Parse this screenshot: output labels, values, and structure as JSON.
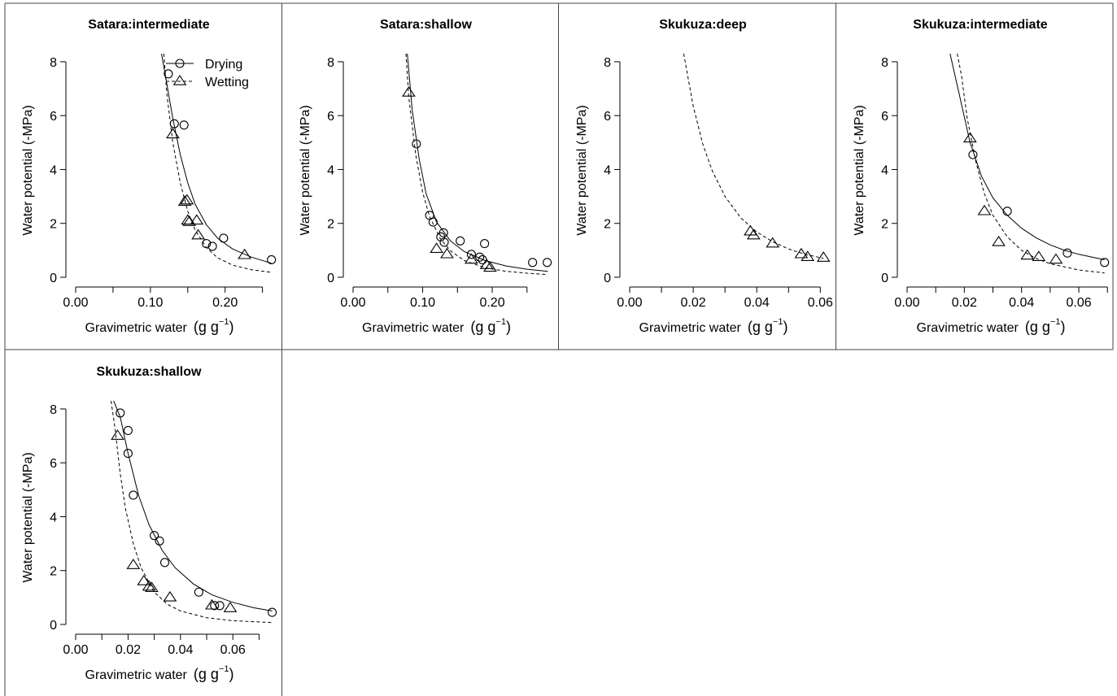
{
  "chart_data": [
    {
      "type": "scatter",
      "title": "Satara:intermediate",
      "xlabel": "Gravimetric water",
      "xunit_base": "(g g",
      "xunit_exp": "−1",
      "xunit_close": ")",
      "ylabel": "Water potential (-MPa)",
      "xlim": [
        0,
        0.27
      ],
      "ylim": [
        0,
        8.3
      ],
      "xticks": [
        0,
        0.05,
        0.1,
        0.15,
        0.2,
        0.25
      ],
      "xticklabels": [
        "0.00",
        "",
        "0.10",
        "",
        "0.20",
        ""
      ],
      "yticks": [
        0,
        2,
        4,
        6,
        8
      ],
      "yticklabels": [
        "0",
        "2",
        "4",
        "6",
        "8"
      ],
      "legend": {
        "position": "top-right",
        "entries": [
          "Drying",
          "Wetting"
        ]
      },
      "series": [
        {
          "name": "Drying",
          "marker": "circle",
          "line": "solid",
          "points": [
            [
              0.124,
              7.55
            ],
            [
              0.132,
              5.7
            ],
            [
              0.145,
              5.65
            ],
            [
              0.175,
              1.25
            ],
            [
              0.183,
              1.15
            ],
            [
              0.198,
              1.45
            ],
            [
              0.262,
              0.65
            ]
          ],
          "curve": [
            [
              0.115,
              8.3
            ],
            [
              0.12,
              7.5
            ],
            [
              0.13,
              5.9
            ],
            [
              0.14,
              4.55
            ],
            [
              0.15,
              3.5
            ],
            [
              0.16,
              2.7
            ],
            [
              0.175,
              1.95
            ],
            [
              0.19,
              1.45
            ],
            [
              0.21,
              1.05
            ],
            [
              0.235,
              0.75
            ],
            [
              0.262,
              0.52
            ]
          ]
        },
        {
          "name": "Wetting",
          "marker": "triangle",
          "line": "dashed",
          "points": [
            [
              0.13,
              5.3
            ],
            [
              0.146,
              2.8
            ],
            [
              0.149,
              2.85
            ],
            [
              0.15,
              2.1
            ],
            [
              0.152,
              2.05
            ],
            [
              0.162,
              2.1
            ],
            [
              0.164,
              1.55
            ],
            [
              0.226,
              0.82
            ]
          ],
          "curve": [
            [
              0.118,
              8.3
            ],
            [
              0.122,
              6.8
            ],
            [
              0.13,
              5.0
            ],
            [
              0.14,
              3.5
            ],
            [
              0.15,
              2.45
            ],
            [
              0.16,
              1.75
            ],
            [
              0.175,
              1.1
            ],
            [
              0.19,
              0.72
            ],
            [
              0.21,
              0.45
            ],
            [
              0.235,
              0.28
            ],
            [
              0.262,
              0.18
            ]
          ]
        }
      ]
    },
    {
      "type": "scatter",
      "title": "Satara:shallow",
      "xlabel": "Gravimetric water",
      "xunit_base": "(g g",
      "xunit_exp": "−1",
      "xunit_close": ")",
      "ylabel": "Water potential (-MPa)",
      "xlim": [
        0,
        0.29
      ],
      "ylim": [
        0,
        8.3
      ],
      "xticks": [
        0,
        0.05,
        0.1,
        0.15,
        0.2,
        0.25
      ],
      "xticklabels": [
        "0.00",
        "",
        "0.10",
        "",
        "0.20",
        ""
      ],
      "yticks": [
        0,
        2,
        4,
        6,
        8
      ],
      "yticklabels": [
        "0",
        "2",
        "4",
        "6",
        "8"
      ],
      "series": [
        {
          "name": "Drying",
          "marker": "circle",
          "line": "solid",
          "points": [
            [
              0.091,
              4.95
            ],
            [
              0.11,
              2.3
            ],
            [
              0.115,
              2.05
            ],
            [
              0.126,
              1.5
            ],
            [
              0.13,
              1.65
            ],
            [
              0.131,
              1.3
            ],
            [
              0.154,
              1.35
            ],
            [
              0.17,
              0.85
            ],
            [
              0.182,
              0.75
            ],
            [
              0.186,
              0.65
            ],
            [
              0.189,
              1.25
            ],
            [
              0.258,
              0.55
            ],
            [
              0.279,
              0.55
            ]
          ],
          "curve": [
            [
              0.078,
              8.3
            ],
            [
              0.085,
              6.2
            ],
            [
              0.095,
              4.4
            ],
            [
              0.105,
              3.1
            ],
            [
              0.12,
              2.05
            ],
            [
              0.14,
              1.35
            ],
            [
              0.16,
              0.95
            ],
            [
              0.19,
              0.62
            ],
            [
              0.22,
              0.42
            ],
            [
              0.25,
              0.3
            ],
            [
              0.28,
              0.22
            ]
          ]
        },
        {
          "name": "Wetting",
          "marker": "triangle",
          "line": "dashed",
          "points": [
            [
              0.08,
              6.85
            ],
            [
              0.12,
              1.05
            ],
            [
              0.135,
              0.85
            ],
            [
              0.17,
              0.65
            ],
            [
              0.192,
              0.45
            ],
            [
              0.197,
              0.35
            ]
          ],
          "curve": [
            [
              0.076,
              8.3
            ],
            [
              0.08,
              6.7
            ],
            [
              0.09,
              4.55
            ],
            [
              0.1,
              3.15
            ],
            [
              0.11,
              2.25
            ],
            [
              0.125,
              1.45
            ],
            [
              0.14,
              0.98
            ],
            [
              0.16,
              0.62
            ],
            [
              0.19,
              0.35
            ],
            [
              0.22,
              0.22
            ],
            [
              0.25,
              0.15
            ],
            [
              0.28,
              0.1
            ]
          ]
        }
      ]
    },
    {
      "type": "scatter",
      "title": "Skukuza:deep",
      "xlabel": "Gravimetric water",
      "xunit_base": "(g g",
      "xunit_exp": "−1",
      "xunit_close": ")",
      "ylabel": "Water potential (-MPa)",
      "xlim": [
        0,
        0.0635
      ],
      "ylim": [
        0,
        8.3
      ],
      "xticks": [
        0,
        0.01,
        0.02,
        0.03,
        0.04,
        0.05,
        0.06
      ],
      "xticklabels": [
        "0.00",
        "",
        "0.02",
        "",
        "0.04",
        "",
        "0.06"
      ],
      "yticks": [
        0,
        2,
        4,
        6,
        8
      ],
      "yticklabels": [
        "0",
        "2",
        "4",
        "6",
        "8"
      ],
      "series": [
        {
          "name": "Wetting",
          "marker": "triangle",
          "line": "dashed",
          "points": [
            [
              0.038,
              1.7
            ],
            [
              0.039,
              1.55
            ],
            [
              0.045,
              1.25
            ],
            [
              0.054,
              0.85
            ],
            [
              0.056,
              0.75
            ],
            [
              0.061,
              0.72
            ]
          ],
          "curve": [
            [
              0.017,
              8.3
            ],
            [
              0.02,
              6.35
            ],
            [
              0.023,
              4.95
            ],
            [
              0.026,
              3.95
            ],
            [
              0.03,
              3.0
            ],
            [
              0.035,
              2.2
            ],
            [
              0.04,
              1.68
            ],
            [
              0.045,
              1.32
            ],
            [
              0.05,
              1.05
            ],
            [
              0.055,
              0.86
            ],
            [
              0.061,
              0.7
            ]
          ]
        }
      ]
    },
    {
      "type": "scatter",
      "title": "Skukuza:intermediate",
      "xlabel": "Gravimetric water",
      "xunit_base": "(g g",
      "xunit_exp": "−1",
      "xunit_close": ")",
      "ylabel": "Water potential (-MPa)",
      "xlim": [
        0,
        0.0705
      ],
      "ylim": [
        0,
        8.3
      ],
      "xticks": [
        0,
        0.01,
        0.02,
        0.03,
        0.04,
        0.05,
        0.06,
        0.07
      ],
      "xticklabels": [
        "0.00",
        "",
        "0.02",
        "",
        "0.04",
        "",
        "0.06",
        ""
      ],
      "yticks": [
        0,
        2,
        4,
        6,
        8
      ],
      "yticklabels": [
        "0",
        "2",
        "4",
        "6",
        "8"
      ],
      "series": [
        {
          "name": "Drying",
          "marker": "circle",
          "line": "solid",
          "points": [
            [
              0.023,
              4.55
            ],
            [
              0.035,
              2.45
            ],
            [
              0.056,
              0.9
            ],
            [
              0.069,
              0.55
            ]
          ],
          "curve": [
            [
              0.015,
              8.3
            ],
            [
              0.018,
              6.9
            ],
            [
              0.022,
              5.0
            ],
            [
              0.026,
              3.75
            ],
            [
              0.03,
              2.95
            ],
            [
              0.035,
              2.3
            ],
            [
              0.04,
              1.82
            ],
            [
              0.045,
              1.47
            ],
            [
              0.05,
              1.2
            ],
            [
              0.055,
              1.0
            ],
            [
              0.06,
              0.85
            ],
            [
              0.069,
              0.65
            ]
          ]
        },
        {
          "name": "Wetting",
          "marker": "triangle",
          "line": "dashed",
          "points": [
            [
              0.022,
              5.15
            ],
            [
              0.027,
              2.45
            ],
            [
              0.032,
              1.3
            ],
            [
              0.042,
              0.8
            ],
            [
              0.046,
              0.75
            ],
            [
              0.052,
              0.65
            ]
          ],
          "curve": [
            [
              0.0175,
              8.3
            ],
            [
              0.019,
              7.5
            ],
            [
              0.021,
              5.9
            ],
            [
              0.024,
              4.3
            ],
            [
              0.027,
              3.1
            ],
            [
              0.03,
              2.3
            ],
            [
              0.035,
              1.5
            ],
            [
              0.04,
              1.0
            ],
            [
              0.045,
              0.7
            ],
            [
              0.05,
              0.5
            ],
            [
              0.06,
              0.27
            ],
            [
              0.069,
              0.16
            ]
          ]
        }
      ]
    },
    {
      "type": "scatter",
      "title": "Skukuza:shallow",
      "xlabel": "Gravimetric water",
      "xunit_base": "(g g",
      "xunit_exp": "−1",
      "xunit_close": ")",
      "ylabel": "Water potential (-MPa)",
      "xlim": [
        0,
        0.077
      ],
      "ylim": [
        0,
        8.3
      ],
      "xticks": [
        0,
        0.01,
        0.02,
        0.03,
        0.04,
        0.05,
        0.06,
        0.07
      ],
      "xticklabels": [
        "0.00",
        "",
        "0.02",
        "",
        "0.04",
        "",
        "0.06",
        ""
      ],
      "yticks": [
        0,
        2,
        4,
        6,
        8
      ],
      "yticklabels": [
        "0",
        "2",
        "4",
        "6",
        "8"
      ],
      "series": [
        {
          "name": "Drying",
          "marker": "circle",
          "line": "solid",
          "points": [
            [
              0.017,
              7.85
            ],
            [
              0.02,
              7.2
            ],
            [
              0.02,
              6.35
            ],
            [
              0.022,
              4.8
            ],
            [
              0.03,
              3.3
            ],
            [
              0.032,
              3.1
            ],
            [
              0.034,
              2.3
            ],
            [
              0.047,
              1.2
            ],
            [
              0.053,
              0.7
            ],
            [
              0.055,
              0.7
            ],
            [
              0.075,
              0.45
            ]
          ],
          "curve": [
            [
              0.0145,
              8.3
            ],
            [
              0.017,
              7.7
            ],
            [
              0.02,
              6.35
            ],
            [
              0.024,
              4.8
            ],
            [
              0.028,
              3.7
            ],
            [
              0.033,
              2.75
            ],
            [
              0.038,
              2.1
            ],
            [
              0.045,
              1.5
            ],
            [
              0.052,
              1.1
            ],
            [
              0.06,
              0.82
            ],
            [
              0.068,
              0.62
            ],
            [
              0.075,
              0.5
            ]
          ]
        },
        {
          "name": "Wetting",
          "marker": "triangle",
          "line": "dashed",
          "points": [
            [
              0.016,
              7.0
            ],
            [
              0.022,
              2.2
            ],
            [
              0.026,
              1.6
            ],
            [
              0.028,
              1.4
            ],
            [
              0.029,
              1.35
            ],
            [
              0.036,
              1.0
            ],
            [
              0.052,
              0.7
            ],
            [
              0.059,
              0.6
            ]
          ],
          "curve": [
            [
              0.0135,
              8.3
            ],
            [
              0.015,
              7.3
            ],
            [
              0.017,
              5.6
            ],
            [
              0.019,
              4.3
            ],
            [
              0.022,
              3.0
            ],
            [
              0.025,
              2.1
            ],
            [
              0.03,
              1.2
            ],
            [
              0.035,
              0.75
            ],
            [
              0.04,
              0.5
            ],
            [
              0.05,
              0.25
            ],
            [
              0.06,
              0.14
            ],
            [
              0.075,
              0.07
            ]
          ]
        }
      ]
    }
  ]
}
